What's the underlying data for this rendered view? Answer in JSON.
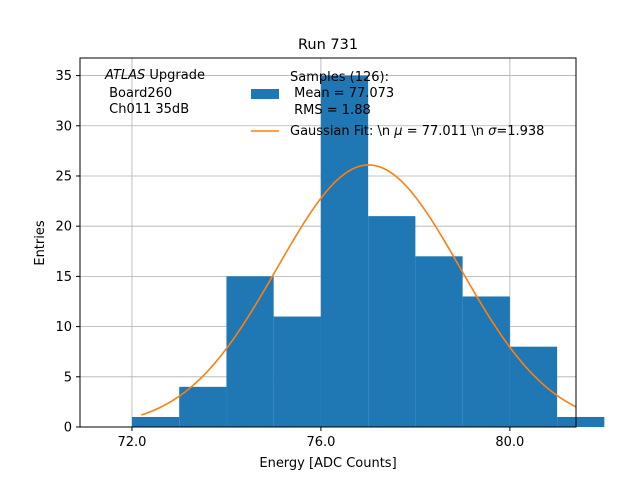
{
  "chart_data": {
    "type": "bar",
    "title": "Run 731",
    "xlabel": "Energy [ADC Counts]",
    "ylabel": "Entries",
    "xlim": [
      70.9,
      81.4
    ],
    "ylim": [
      0,
      36.75
    ],
    "grid": true,
    "x_ticks": [
      "72.0",
      "76.0",
      "80.0"
    ],
    "x_tick_values": [
      72,
      76,
      80
    ],
    "y_ticks": [
      "0",
      "5",
      "10",
      "15",
      "20",
      "25",
      "30",
      "35"
    ],
    "y_tick_values": [
      0,
      5,
      10,
      15,
      20,
      25,
      30,
      35
    ],
    "histogram": {
      "bin_edges": [
        72,
        73,
        74,
        75,
        76,
        77,
        78,
        79,
        80,
        81,
        82
      ],
      "counts": [
        1,
        4,
        15,
        11,
        35,
        21,
        17,
        13,
        8,
        1
      ],
      "color": "#1f77b4"
    },
    "fit": {
      "mu": 77.011,
      "sigma": 1.938,
      "amplitude": 26.1,
      "x_range": [
        72.2,
        81.4
      ],
      "color": "#ff7f0e"
    },
    "annotation": {
      "line1_italic": "ATLAS",
      "line1_rest": " Upgrade",
      "line2": " Board260",
      "line3": " Ch011 35dB"
    },
    "legend": {
      "placement": "top-right",
      "entries": [
        {
          "name": "samples",
          "lines": [
            "Samples (126):",
            " Mean = 77.073",
            " RMS = 1.88"
          ]
        },
        {
          "name": "gaussian-fit",
          "text_prefix": "Gaussian Fit: \\n ",
          "mu_symbol": "μ",
          "mu_text": " = 77.011 \\n ",
          "sigma_symbol": "σ",
          "sigma_text": "=1.938"
        }
      ]
    }
  }
}
